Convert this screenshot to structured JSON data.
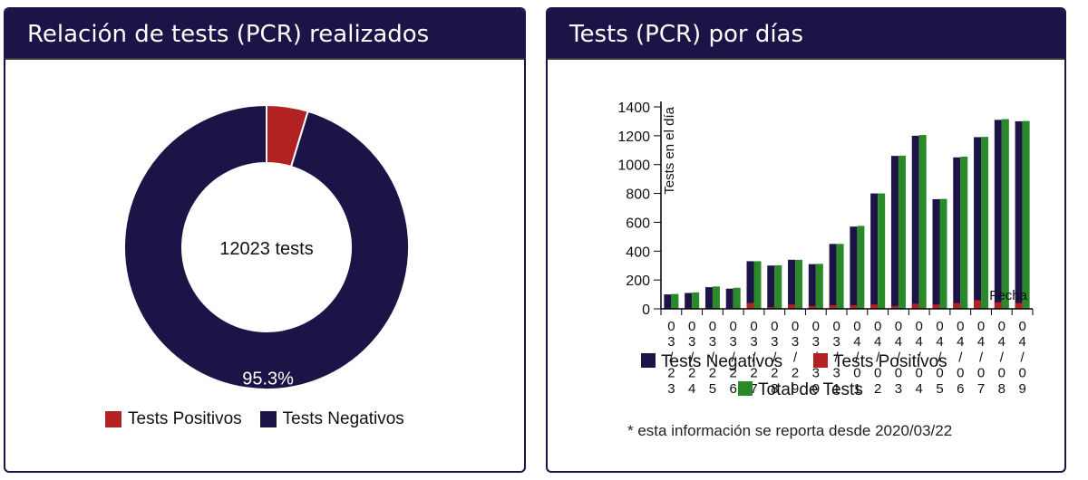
{
  "panels": {
    "left": {
      "title": "Relación de tests (PCR) realizados"
    },
    "right": {
      "title": "Tests (PCR) por días"
    }
  },
  "chart_data": [
    {
      "type": "pie",
      "variant": "donut",
      "center_label": "12023 tests",
      "slices": [
        {
          "label": "Tests Positivos",
          "value": 4.7,
          "color": "#b22222"
        },
        {
          "label": "Tests Negativos",
          "value": 95.3,
          "color": "#1c1447",
          "data_label": "95.3%"
        }
      ],
      "legend": [
        "Tests Positivos",
        "Tests Negativos"
      ],
      "legend_position": "bottom"
    },
    {
      "type": "bar",
      "ylabel": "Tests en el día",
      "xlabel": "Fecha",
      "ylim": [
        0,
        1400
      ],
      "yticks": [
        0,
        200,
        400,
        600,
        800,
        1000,
        1200,
        1400
      ],
      "categories": [
        "03/23",
        "03/24",
        "03/25",
        "03/26",
        "03/27",
        "03/28",
        "03/29",
        "03/30",
        "03/31",
        "04/01",
        "04/02",
        "04/03",
        "04/04",
        "04/05",
        "04/06",
        "04/07",
        "04/08",
        "04/09"
      ],
      "series": [
        {
          "name": "Tests Negativos",
          "color": "#1c1447",
          "values": [
            100,
            110,
            150,
            140,
            330,
            300,
            340,
            310,
            450,
            570,
            800,
            1060,
            1200,
            760,
            1050,
            1190,
            1310,
            1300
          ]
        },
        {
          "name": "Tests Positivos",
          "color": "#b22222",
          "values": [
            3,
            4,
            5,
            6,
            40,
            12,
            30,
            20,
            25,
            25,
            30,
            20,
            35,
            30,
            40,
            60,
            45,
            40
          ]
        },
        {
          "name": "Total de Tests",
          "color": "#2a8a2a",
          "values": [
            103,
            114,
            155,
            146,
            330,
            302,
            340,
            312,
            450,
            575,
            800,
            1062,
            1205,
            762,
            1055,
            1192,
            1315,
            1302
          ]
        }
      ],
      "legend_position": "bottom",
      "grid": false
    }
  ],
  "footnote": "* esta información se reporta desde 2020/03/22"
}
